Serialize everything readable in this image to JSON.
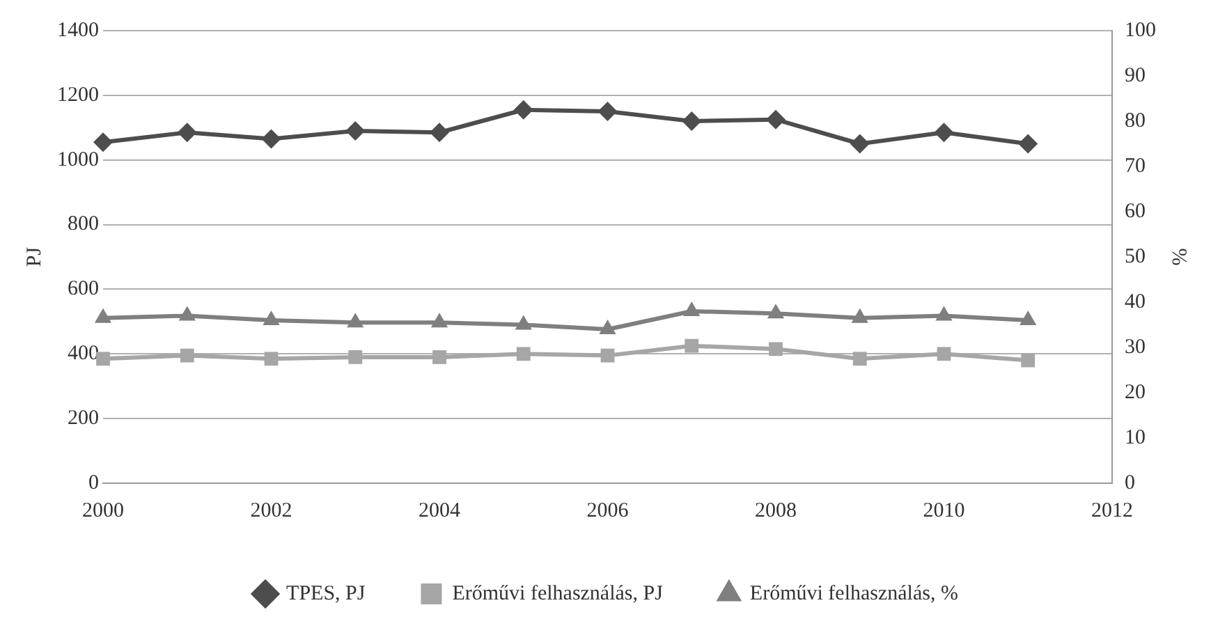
{
  "chart_data": {
    "type": "line",
    "ylabel": "PJ",
    "y2label": "%",
    "x": [
      2000,
      2001,
      2002,
      2003,
      2004,
      2005,
      2006,
      2007,
      2008,
      2009,
      2010,
      2011
    ],
    "series": [
      {
        "name": "TPES, PJ",
        "color": "#4d4d4d",
        "marker": "diamond",
        "values": [
          1055,
          1085,
          1065,
          1090,
          1085,
          1155,
          1150,
          1120,
          1125,
          1050,
          1085,
          1050
        ]
      },
      {
        "name": "Erőművi felhasználás, PJ",
        "color": "#a6a6a6",
        "marker": "square",
        "values": [
          385,
          395,
          385,
          390,
          390,
          400,
          395,
          425,
          415,
          385,
          400,
          380
        ]
      },
      {
        "name": "Erőművi felhasználás, %",
        "color": "#7f7f7f",
        "marker": "triangle",
        "axis": "y2",
        "values": [
          36.5,
          37,
          36,
          35.5,
          35.5,
          35,
          34,
          38,
          37.5,
          36.5,
          37,
          36
        ]
      }
    ],
    "xlim": [
      2000,
      2012
    ],
    "xticks": [
      2000,
      2002,
      2004,
      2006,
      2008,
      2010,
      2012
    ],
    "ylim": [
      0,
      1400
    ],
    "yticks": [
      0,
      200,
      400,
      600,
      800,
      1000,
      1200,
      1400
    ],
    "y2lim": [
      0,
      100
    ],
    "y2ticks": [
      0,
      10,
      20,
      30,
      40,
      50,
      60,
      70,
      80,
      90,
      100
    ],
    "grid": "y",
    "legend": "bottom"
  }
}
